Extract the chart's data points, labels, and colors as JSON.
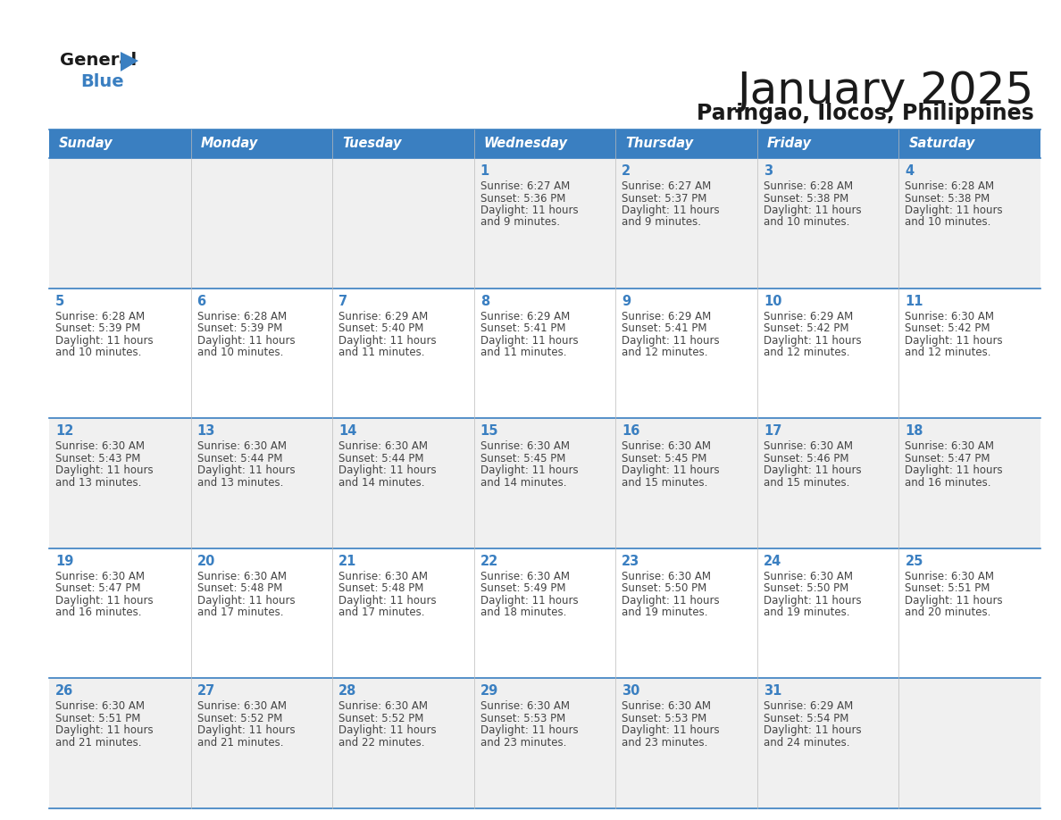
{
  "title": "January 2025",
  "subtitle": "Paringao, Ilocos, Philippines",
  "days_of_week": [
    "Sunday",
    "Monday",
    "Tuesday",
    "Wednesday",
    "Thursday",
    "Friday",
    "Saturday"
  ],
  "header_bg": "#3A7FC1",
  "header_text": "#FFFFFF",
  "row_bg_odd": "#F0F0F0",
  "row_bg_even": "#FFFFFF",
  "day_num_color": "#3A7FC1",
  "text_color": "#444444",
  "line_color": "#3A7FC1",
  "calendar": [
    [
      {
        "day": null
      },
      {
        "day": null
      },
      {
        "day": null
      },
      {
        "day": 1,
        "sunrise": "6:27 AM",
        "sunset": "5:36 PM",
        "daylight_hours": 11,
        "daylight_min": 9
      },
      {
        "day": 2,
        "sunrise": "6:27 AM",
        "sunset": "5:37 PM",
        "daylight_hours": 11,
        "daylight_min": 9
      },
      {
        "day": 3,
        "sunrise": "6:28 AM",
        "sunset": "5:38 PM",
        "daylight_hours": 11,
        "daylight_min": 10
      },
      {
        "day": 4,
        "sunrise": "6:28 AM",
        "sunset": "5:38 PM",
        "daylight_hours": 11,
        "daylight_min": 10
      }
    ],
    [
      {
        "day": 5,
        "sunrise": "6:28 AM",
        "sunset": "5:39 PM",
        "daylight_hours": 11,
        "daylight_min": 10
      },
      {
        "day": 6,
        "sunrise": "6:28 AM",
        "sunset": "5:39 PM",
        "daylight_hours": 11,
        "daylight_min": 10
      },
      {
        "day": 7,
        "sunrise": "6:29 AM",
        "sunset": "5:40 PM",
        "daylight_hours": 11,
        "daylight_min": 11
      },
      {
        "day": 8,
        "sunrise": "6:29 AM",
        "sunset": "5:41 PM",
        "daylight_hours": 11,
        "daylight_min": 11
      },
      {
        "day": 9,
        "sunrise": "6:29 AM",
        "sunset": "5:41 PM",
        "daylight_hours": 11,
        "daylight_min": 12
      },
      {
        "day": 10,
        "sunrise": "6:29 AM",
        "sunset": "5:42 PM",
        "daylight_hours": 11,
        "daylight_min": 12
      },
      {
        "day": 11,
        "sunrise": "6:30 AM",
        "sunset": "5:42 PM",
        "daylight_hours": 11,
        "daylight_min": 12
      }
    ],
    [
      {
        "day": 12,
        "sunrise": "6:30 AM",
        "sunset": "5:43 PM",
        "daylight_hours": 11,
        "daylight_min": 13
      },
      {
        "day": 13,
        "sunrise": "6:30 AM",
        "sunset": "5:44 PM",
        "daylight_hours": 11,
        "daylight_min": 13
      },
      {
        "day": 14,
        "sunrise": "6:30 AM",
        "sunset": "5:44 PM",
        "daylight_hours": 11,
        "daylight_min": 14
      },
      {
        "day": 15,
        "sunrise": "6:30 AM",
        "sunset": "5:45 PM",
        "daylight_hours": 11,
        "daylight_min": 14
      },
      {
        "day": 16,
        "sunrise": "6:30 AM",
        "sunset": "5:45 PM",
        "daylight_hours": 11,
        "daylight_min": 15
      },
      {
        "day": 17,
        "sunrise": "6:30 AM",
        "sunset": "5:46 PM",
        "daylight_hours": 11,
        "daylight_min": 15
      },
      {
        "day": 18,
        "sunrise": "6:30 AM",
        "sunset": "5:47 PM",
        "daylight_hours": 11,
        "daylight_min": 16
      }
    ],
    [
      {
        "day": 19,
        "sunrise": "6:30 AM",
        "sunset": "5:47 PM",
        "daylight_hours": 11,
        "daylight_min": 16
      },
      {
        "day": 20,
        "sunrise": "6:30 AM",
        "sunset": "5:48 PM",
        "daylight_hours": 11,
        "daylight_min": 17
      },
      {
        "day": 21,
        "sunrise": "6:30 AM",
        "sunset": "5:48 PM",
        "daylight_hours": 11,
        "daylight_min": 17
      },
      {
        "day": 22,
        "sunrise": "6:30 AM",
        "sunset": "5:49 PM",
        "daylight_hours": 11,
        "daylight_min": 18
      },
      {
        "day": 23,
        "sunrise": "6:30 AM",
        "sunset": "5:50 PM",
        "daylight_hours": 11,
        "daylight_min": 19
      },
      {
        "day": 24,
        "sunrise": "6:30 AM",
        "sunset": "5:50 PM",
        "daylight_hours": 11,
        "daylight_min": 19
      },
      {
        "day": 25,
        "sunrise": "6:30 AM",
        "sunset": "5:51 PM",
        "daylight_hours": 11,
        "daylight_min": 20
      }
    ],
    [
      {
        "day": 26,
        "sunrise": "6:30 AM",
        "sunset": "5:51 PM",
        "daylight_hours": 11,
        "daylight_min": 21
      },
      {
        "day": 27,
        "sunrise": "6:30 AM",
        "sunset": "5:52 PM",
        "daylight_hours": 11,
        "daylight_min": 21
      },
      {
        "day": 28,
        "sunrise": "6:30 AM",
        "sunset": "5:52 PM",
        "daylight_hours": 11,
        "daylight_min": 22
      },
      {
        "day": 29,
        "sunrise": "6:30 AM",
        "sunset": "5:53 PM",
        "daylight_hours": 11,
        "daylight_min": 23
      },
      {
        "day": 30,
        "sunrise": "6:30 AM",
        "sunset": "5:53 PM",
        "daylight_hours": 11,
        "daylight_min": 23
      },
      {
        "day": 31,
        "sunrise": "6:29 AM",
        "sunset": "5:54 PM",
        "daylight_hours": 11,
        "daylight_min": 24
      },
      {
        "day": null
      }
    ]
  ]
}
